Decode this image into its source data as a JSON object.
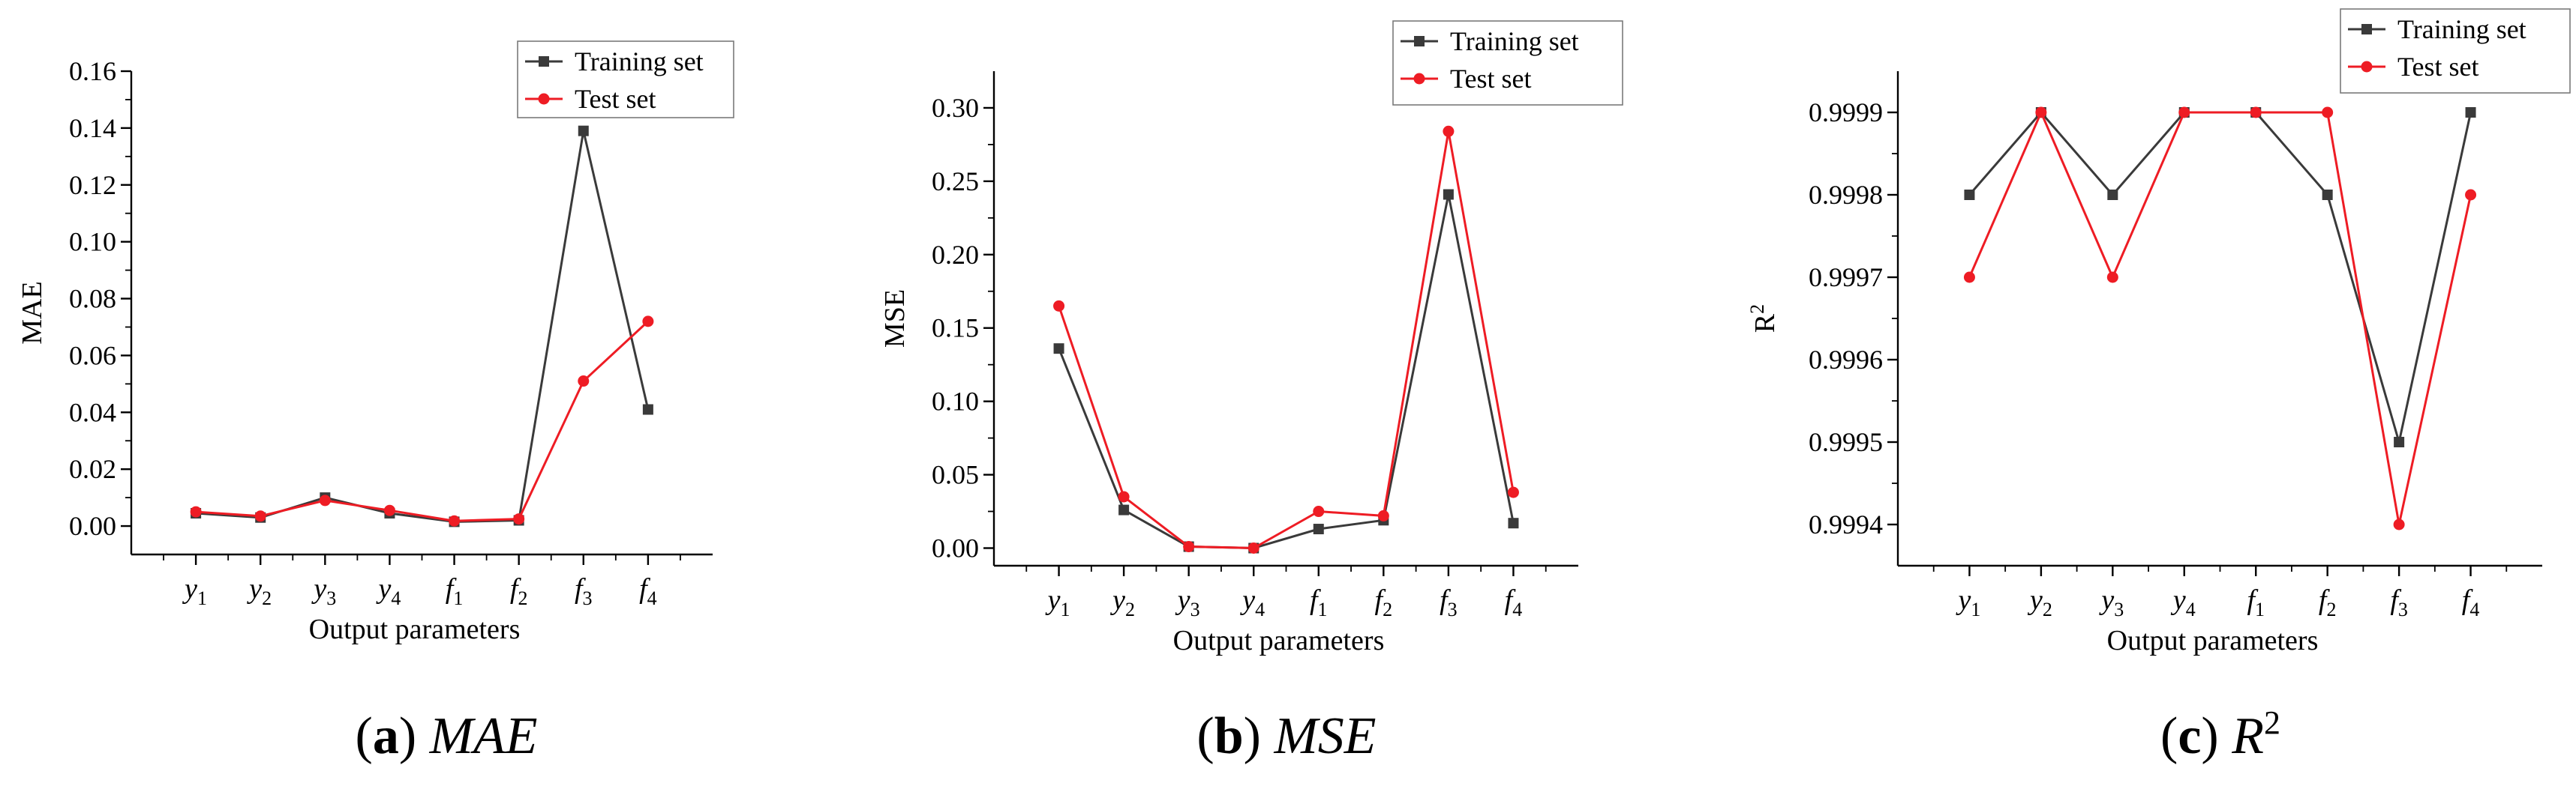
{
  "chart_data": [
    {
      "id": "mae",
      "type": "line",
      "ylabel": "MAE",
      "xlabel": "Output parameters",
      "ylim": [
        -0.01,
        0.16
      ],
      "yticks": [
        0.0,
        0.02,
        0.04,
        0.06,
        0.08,
        0.1,
        0.12,
        0.14,
        0.16
      ],
      "ytick_labels": [
        "0.00",
        "0.02",
        "0.04",
        "0.06",
        "0.08",
        "0.10",
        "0.12",
        "0.14",
        "0.16"
      ],
      "categories": [
        {
          "base": "y",
          "sub": "1"
        },
        {
          "base": "y",
          "sub": "2"
        },
        {
          "base": "y",
          "sub": "3"
        },
        {
          "base": "y",
          "sub": "4"
        },
        {
          "base": "f",
          "sub": "1"
        },
        {
          "base": "f",
          "sub": "2"
        },
        {
          "base": "f",
          "sub": "3"
        },
        {
          "base": "f",
          "sub": "4"
        }
      ],
      "series": [
        {
          "name": "Training set",
          "marker": "square",
          "color": "#3a3a3a",
          "values": [
            0.0045,
            0.003,
            0.01,
            0.0045,
            0.0015,
            0.002,
            0.139,
            0.041
          ]
        },
        {
          "name": "Test set",
          "marker": "circle",
          "color": "#ee1c24",
          "values": [
            0.005,
            0.0035,
            0.009,
            0.0055,
            0.0018,
            0.0025,
            0.051,
            0.072
          ]
        }
      ],
      "legend_position": "top-right",
      "caption": {
        "letter": "(a)",
        "label": "MAE",
        "sup": ""
      }
    },
    {
      "id": "mse",
      "type": "line",
      "ylabel": "MSE",
      "xlabel": "Output parameters",
      "ylim": [
        -0.012,
        0.325
      ],
      "yticks": [
        0.0,
        0.05,
        0.1,
        0.15,
        0.2,
        0.25,
        0.3
      ],
      "ytick_labels": [
        "0.00",
        "0.05",
        "0.10",
        "0.15",
        "0.20",
        "0.25",
        "0.30"
      ],
      "categories": [
        {
          "base": "y",
          "sub": "1"
        },
        {
          "base": "y",
          "sub": "2"
        },
        {
          "base": "y",
          "sub": "3"
        },
        {
          "base": "y",
          "sub": "4"
        },
        {
          "base": "f",
          "sub": "1"
        },
        {
          "base": "f",
          "sub": "2"
        },
        {
          "base": "f",
          "sub": "3"
        },
        {
          "base": "f",
          "sub": "4"
        }
      ],
      "series": [
        {
          "name": "Training set",
          "marker": "square",
          "color": "#3a3a3a",
          "values": [
            0.136,
            0.026,
            0.001,
            0.0,
            0.013,
            0.019,
            0.241,
            0.017
          ]
        },
        {
          "name": "Test set",
          "marker": "circle",
          "color": "#ee1c24",
          "values": [
            0.165,
            0.035,
            0.001,
            0.0,
            0.025,
            0.022,
            0.284,
            0.038
          ]
        }
      ],
      "legend_position": "top-right",
      "caption": {
        "letter": "(b)",
        "label": "MSE",
        "sup": ""
      }
    },
    {
      "id": "r2",
      "type": "line",
      "ylabel": "R",
      "ylabel_sup": "2",
      "xlabel": "Output parameters",
      "ylim": [
        0.99935,
        0.99995
      ],
      "yticks": [
        0.9994,
        0.9995,
        0.9996,
        0.9997,
        0.9998,
        0.9999
      ],
      "ytick_labels": [
        "0.9994",
        "0.9995",
        "0.9996",
        "0.9997",
        "0.9998",
        "0.9999"
      ],
      "categories": [
        {
          "base": "y",
          "sub": "1"
        },
        {
          "base": "y",
          "sub": "2"
        },
        {
          "base": "y",
          "sub": "3"
        },
        {
          "base": "y",
          "sub": "4"
        },
        {
          "base": "f",
          "sub": "1"
        },
        {
          "base": "f",
          "sub": "2"
        },
        {
          "base": "f",
          "sub": "3"
        },
        {
          "base": "f",
          "sub": "4"
        }
      ],
      "series": [
        {
          "name": "Training set",
          "marker": "square",
          "color": "#3a3a3a",
          "values": [
            0.9998,
            0.9999,
            0.9998,
            0.9999,
            0.9999,
            0.9998,
            0.9995,
            0.9999
          ]
        },
        {
          "name": "Test set",
          "marker": "circle",
          "color": "#ee1c24",
          "values": [
            0.9997,
            0.9999,
            0.9997,
            0.9999,
            0.9999,
            0.9999,
            0.9994,
            0.9998
          ]
        }
      ],
      "legend_position": "top-right",
      "caption": {
        "letter": "(c)",
        "label": "R",
        "sup": "2"
      }
    }
  ]
}
